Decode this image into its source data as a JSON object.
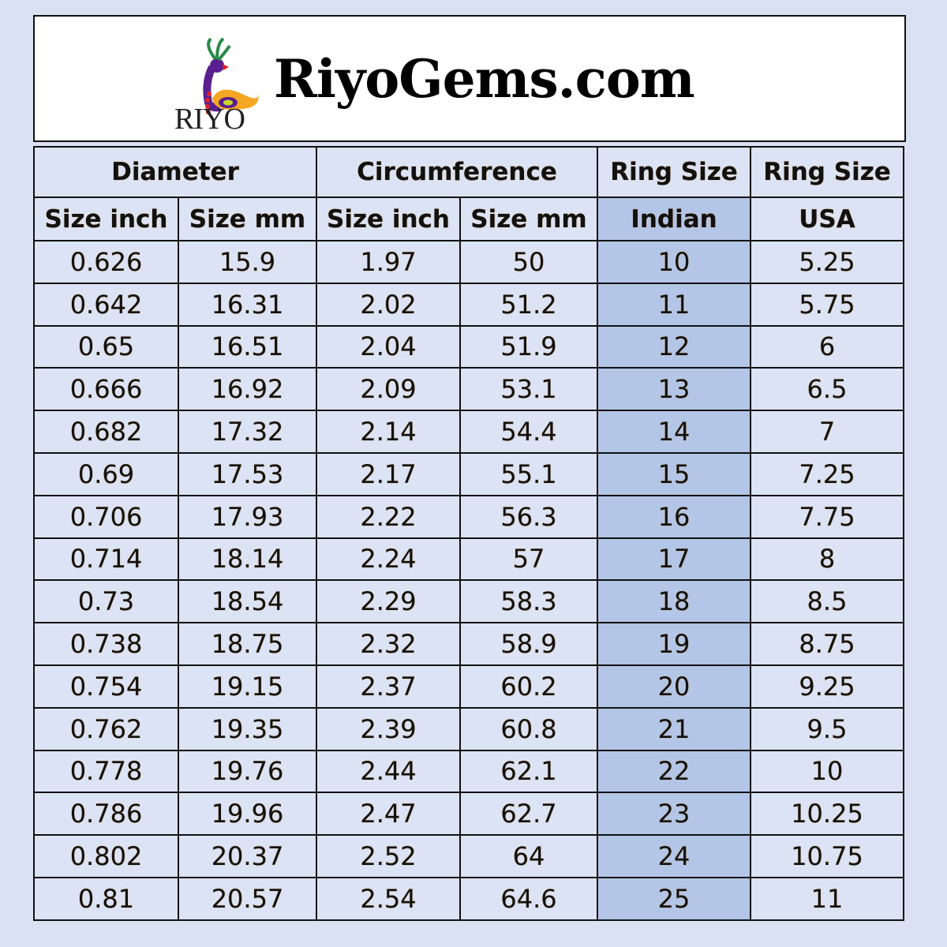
{
  "header": {
    "logo_text": "RIYO",
    "site_title": "RiyoGems.com"
  },
  "table": {
    "group_headers": [
      "Diameter",
      "Circumference",
      "Ring Size",
      "Ring Size"
    ],
    "sub_headers": [
      "Size inch",
      "Size mm",
      "Size inch",
      "Size mm",
      "Indian",
      "USA"
    ],
    "highlight_color": "#b4c6e7",
    "rows": [
      [
        "0.626",
        "15.9",
        "1.97",
        "50",
        "10",
        "5.25"
      ],
      [
        "0.642",
        "16.31",
        "2.02",
        "51.2",
        "11",
        "5.75"
      ],
      [
        "0.65",
        "16.51",
        "2.04",
        "51.9",
        "12",
        "6"
      ],
      [
        "0.666",
        "16.92",
        "2.09",
        "53.1",
        "13",
        "6.5"
      ],
      [
        "0.682",
        "17.32",
        "2.14",
        "54.4",
        "14",
        "7"
      ],
      [
        "0.69",
        "17.53",
        "2.17",
        "55.1",
        "15",
        "7.25"
      ],
      [
        "0.706",
        "17.93",
        "2.22",
        "56.3",
        "16",
        "7.75"
      ],
      [
        "0.714",
        "18.14",
        "2.24",
        "57",
        "17",
        "8"
      ],
      [
        "0.73",
        "18.54",
        "2.29",
        "58.3",
        "18",
        "8.5"
      ],
      [
        "0.738",
        "18.75",
        "2.32",
        "58.9",
        "19",
        "8.75"
      ],
      [
        "0.754",
        "19.15",
        "2.37",
        "60.2",
        "20",
        "9.25"
      ],
      [
        "0.762",
        "19.35",
        "2.39",
        "60.8",
        "21",
        "9.5"
      ],
      [
        "0.778",
        "19.76",
        "2.44",
        "62.1",
        "22",
        "10"
      ],
      [
        "0.786",
        "19.96",
        "2.47",
        "62.7",
        "23",
        "10.25"
      ],
      [
        "0.802",
        "20.37",
        "2.52",
        "64",
        "24",
        "10.75"
      ],
      [
        "0.81",
        "20.57",
        "2.54",
        "64.6",
        "25",
        "11"
      ]
    ]
  }
}
